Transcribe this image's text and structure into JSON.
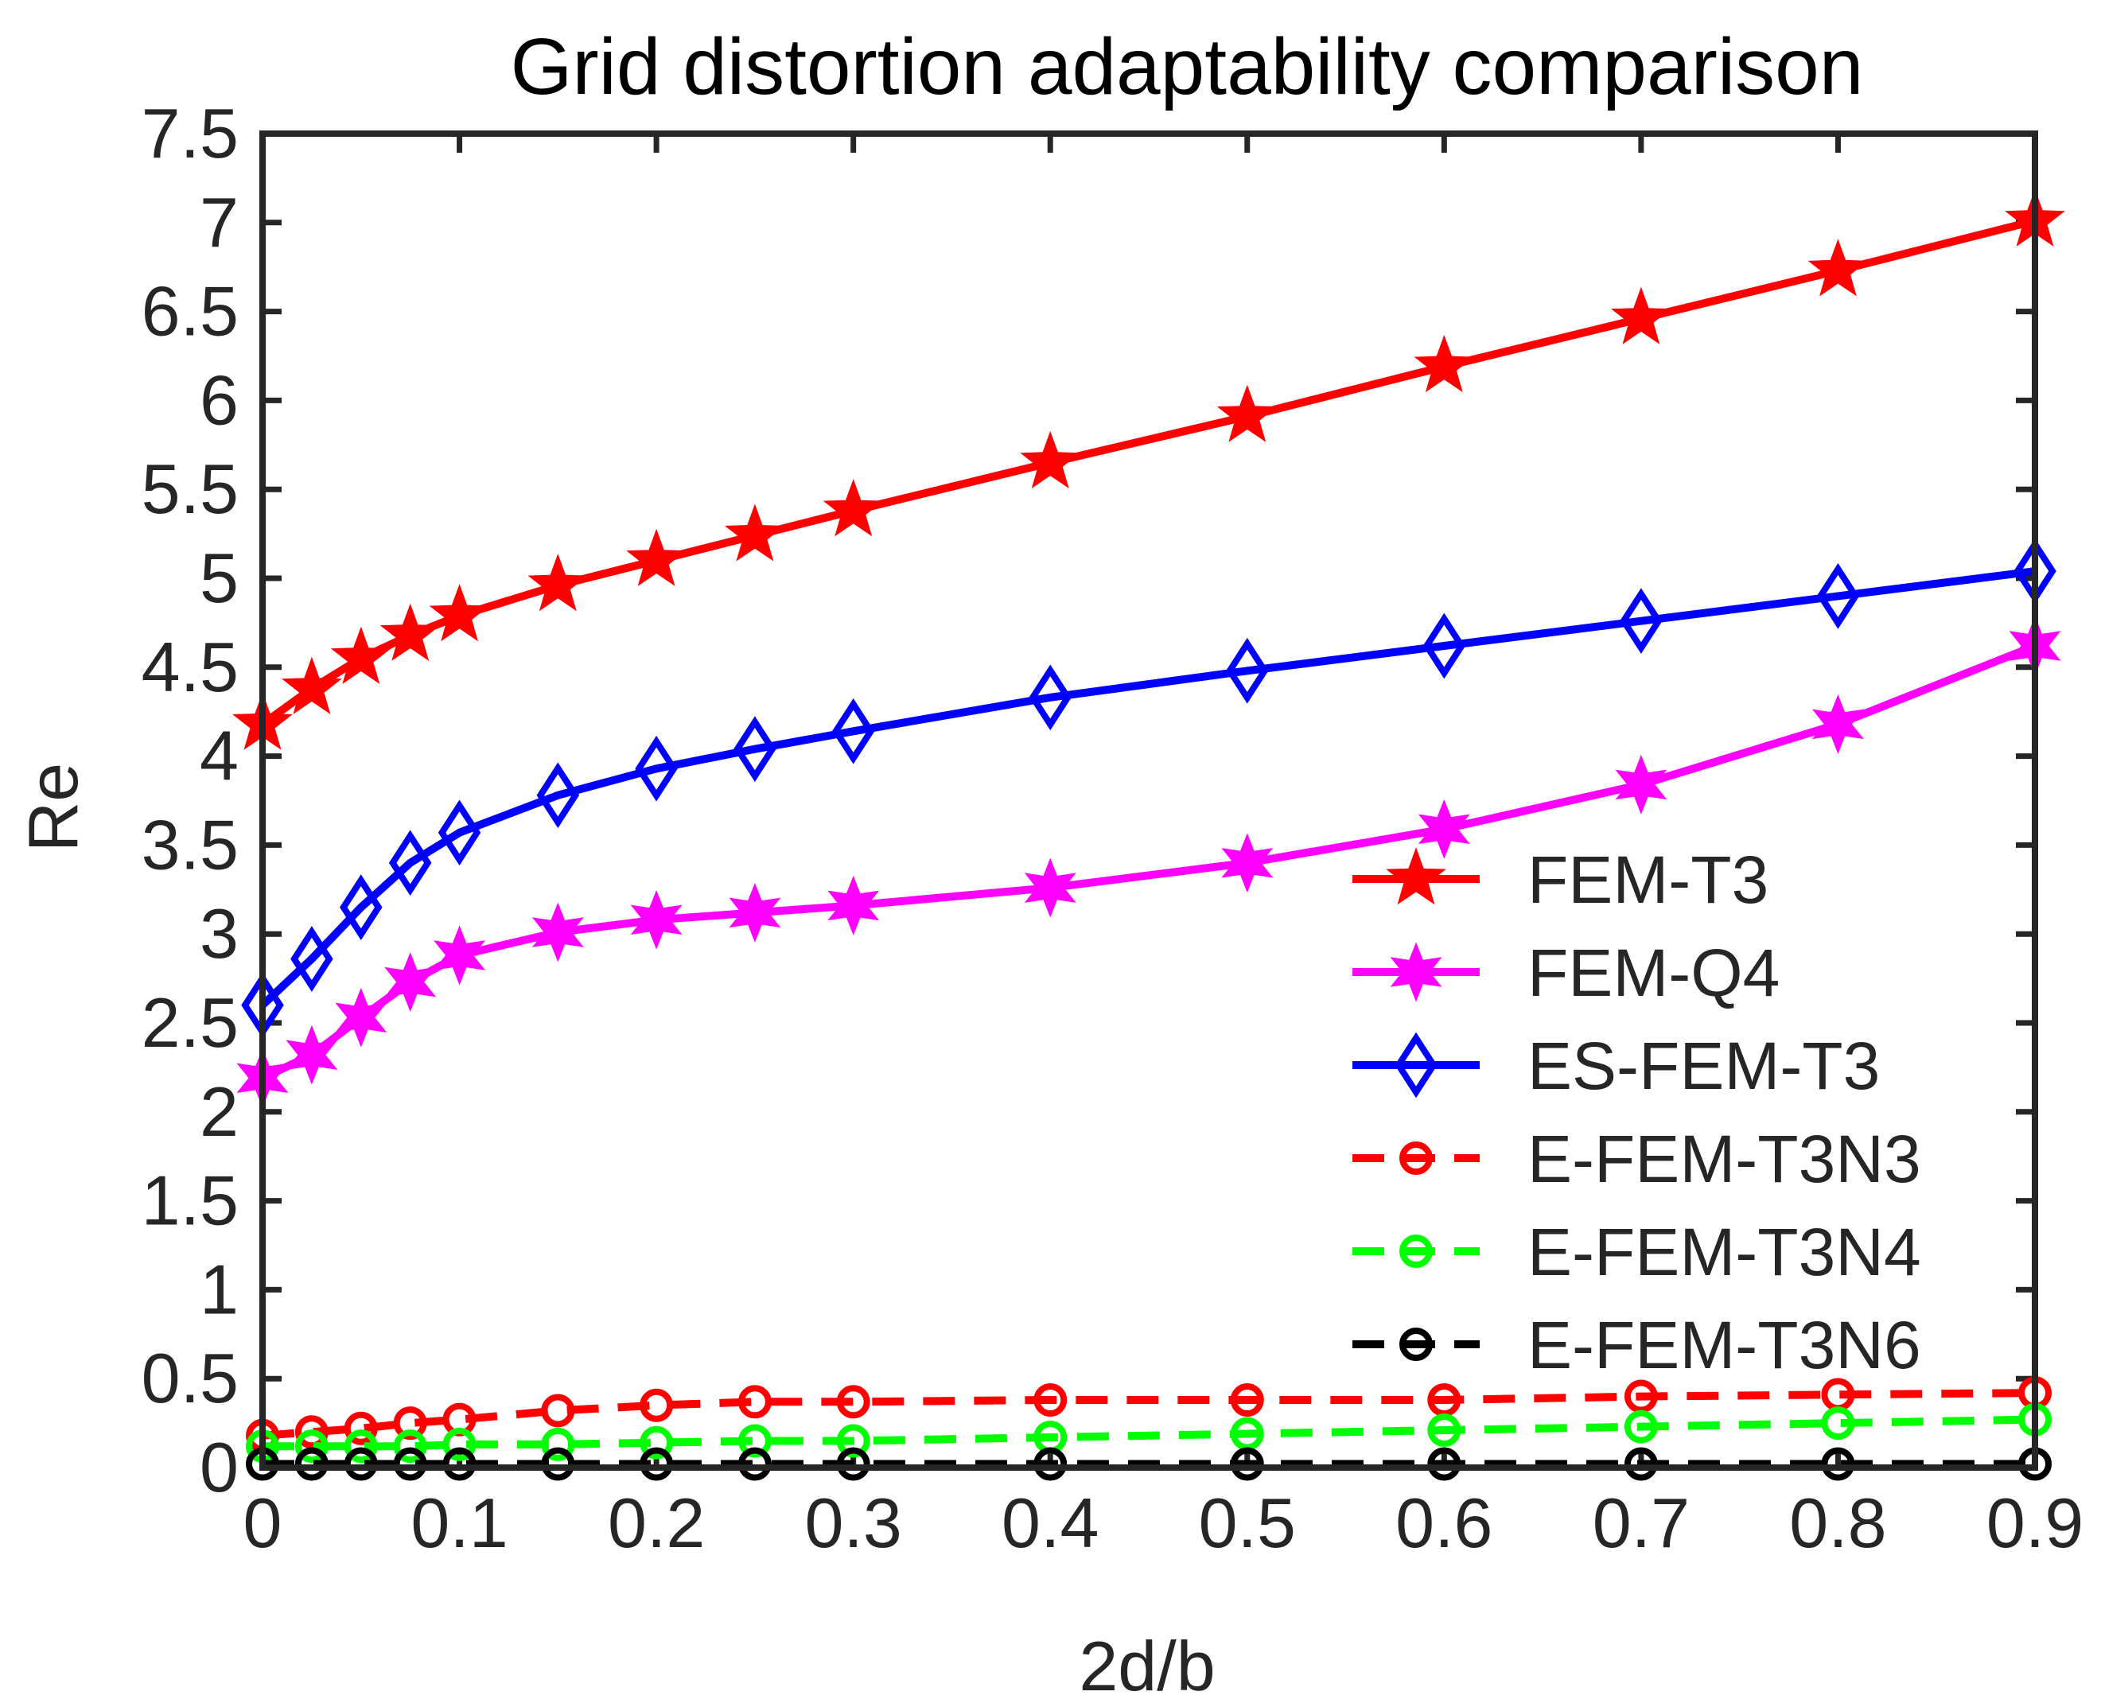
{
  "chart_data": {
    "type": "line",
    "title": "Grid distortion adaptability comparison",
    "xlabel": "2d/b",
    "ylabel": "Re",
    "xlim": [
      0,
      0.9
    ],
    "ylim": [
      0,
      7.5
    ],
    "xticks": [
      0,
      0.1,
      0.2,
      0.3,
      0.4,
      0.5,
      0.6,
      0.7,
      0.8,
      0.9
    ],
    "xtick_labels": [
      "0",
      "0.1",
      "0.2",
      "0.3",
      "0.4",
      "0.5",
      "0.6",
      "0.7",
      "0.8",
      "0.9"
    ],
    "yticks": [
      0,
      0.5,
      1,
      1.5,
      2,
      2.5,
      3,
      3.5,
      4,
      4.5,
      5,
      5.5,
      6,
      6.5,
      7,
      7.5
    ],
    "ytick_labels": [
      "0",
      "0.5",
      "1",
      "1.5",
      "2",
      "2.5",
      "3",
      "3.5",
      "4",
      "4.5",
      "5",
      "5.5",
      "6",
      "6.5",
      "7",
      "7.5"
    ],
    "grid": false,
    "legend_position": "right",
    "x": [
      0,
      0.025,
      0.05,
      0.075,
      0.1,
      0.15,
      0.2,
      0.25,
      0.3,
      0.4,
      0.5,
      0.6,
      0.7,
      0.8,
      0.9
    ],
    "series": [
      {
        "name": "FEM-T3",
        "color": "#ff0000",
        "dash": "solid",
        "marker": "pentagram",
        "values": [
          4.18,
          4.38,
          4.55,
          4.68,
          4.79,
          4.96,
          5.1,
          5.24,
          5.38,
          5.65,
          5.91,
          6.19,
          6.46,
          6.73,
          7.01
        ]
      },
      {
        "name": "FEM-Q4",
        "color": "#ff00ff",
        "dash": "solid",
        "marker": "hexagram",
        "values": [
          2.19,
          2.32,
          2.53,
          2.73,
          2.88,
          3.01,
          3.08,
          3.12,
          3.16,
          3.26,
          3.4,
          3.59,
          3.84,
          4.18,
          4.62
        ]
      },
      {
        "name": "ES-FEM-T3",
        "color": "#0000ff",
        "dash": "solid",
        "marker": "diamond",
        "values": [
          2.6,
          2.86,
          3.15,
          3.4,
          3.57,
          3.78,
          3.93,
          4.04,
          4.14,
          4.33,
          4.48,
          4.62,
          4.76,
          4.9,
          5.04
        ]
      },
      {
        "name": "E-FEM-T3N3",
        "color": "#ff0000",
        "dash": "dashed",
        "marker": "circle",
        "values": [
          0.18,
          0.2,
          0.22,
          0.25,
          0.27,
          0.32,
          0.35,
          0.37,
          0.37,
          0.38,
          0.38,
          0.38,
          0.4,
          0.41,
          0.42
        ]
      },
      {
        "name": "E-FEM-T3N4",
        "color": "#00ff00",
        "dash": "dashed",
        "marker": "circle",
        "values": [
          0.12,
          0.12,
          0.12,
          0.12,
          0.13,
          0.13,
          0.14,
          0.15,
          0.15,
          0.17,
          0.19,
          0.21,
          0.23,
          0.25,
          0.27
        ]
      },
      {
        "name": "E-FEM-T3N6",
        "color": "#000000",
        "dash": "dashed",
        "marker": "circle",
        "values": [
          0.02,
          0.02,
          0.02,
          0.02,
          0.02,
          0.02,
          0.02,
          0.02,
          0.02,
          0.02,
          0.02,
          0.02,
          0.02,
          0.02,
          0.02
        ]
      }
    ]
  }
}
